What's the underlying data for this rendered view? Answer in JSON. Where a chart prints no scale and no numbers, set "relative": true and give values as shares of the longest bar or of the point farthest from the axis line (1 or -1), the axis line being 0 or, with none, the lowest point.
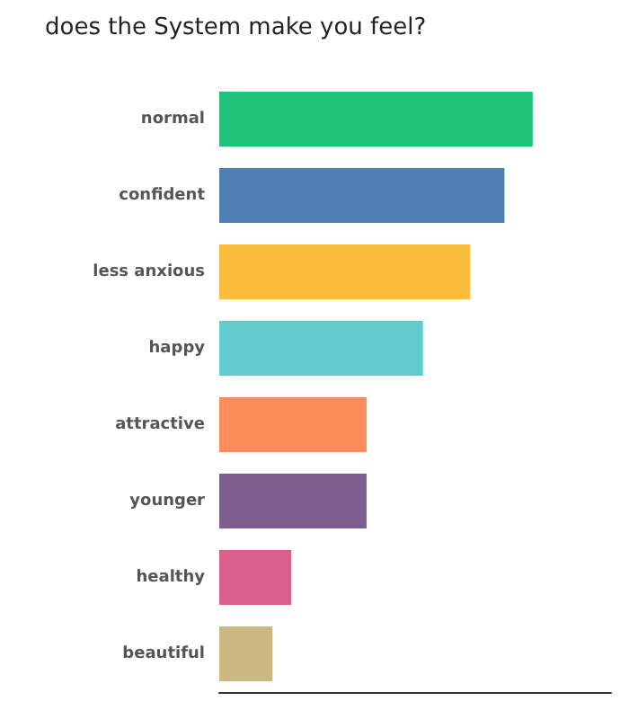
{
  "chart_data": {
    "type": "bar",
    "title": "does the System make you feel?",
    "orientation": "horizontal",
    "relative": true,
    "categories": [
      "normal",
      "confident",
      "less anxious",
      "happy",
      "attractive",
      "younger",
      "healthy",
      "beautiful"
    ],
    "values": [
      1,
      0.91,
      0.8,
      0.65,
      0.47,
      0.47,
      0.23,
      0.17
    ],
    "colors": [
      "#21c27b",
      "#4f7fb5",
      "#fcbd3c",
      "#62cbcf",
      "#fd8b5c",
      "#7e5e8f",
      "#da5f8d",
      "#cbb882"
    ]
  }
}
